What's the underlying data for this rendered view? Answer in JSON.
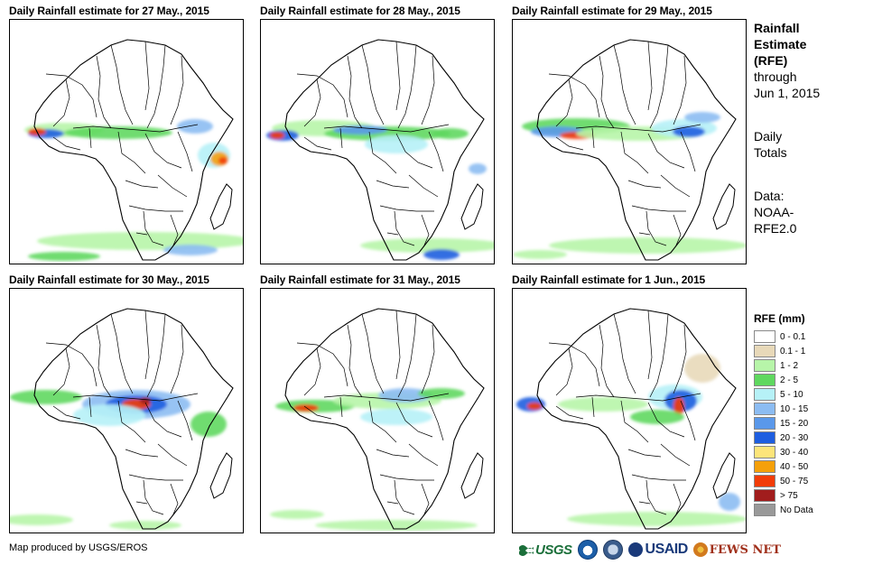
{
  "panels": [
    {
      "title": "Daily Rainfall estimate for 27 May., 2015"
    },
    {
      "title": "Daily Rainfall estimate for 28 May., 2015"
    },
    {
      "title": "Daily Rainfall estimate for 29 May., 2015"
    },
    {
      "title": "Daily Rainfall estimate for 30 May., 2015"
    },
    {
      "title": "Daily Rainfall estimate for 31 May., 2015"
    },
    {
      "title": "Daily Rainfall estimate for 1 Jun., 2015"
    }
  ],
  "side": {
    "title_lines": [
      "Rainfall",
      "Estimate",
      "(RFE)"
    ],
    "through_lines": [
      "through",
      "Jun 1, 2015"
    ],
    "totals_lines": [
      "Daily",
      "Totals"
    ],
    "data_lines": [
      "Data:",
      "NOAA-",
      "RFE2.0"
    ]
  },
  "legend": {
    "title": "RFE (mm)",
    "items": [
      {
        "label": "0 - 0.1",
        "color": "#ffffff"
      },
      {
        "label": "0.1 - 1",
        "color": "#e8d9b9"
      },
      {
        "label": "1 - 2",
        "color": "#b7f5a9"
      },
      {
        "label": "2 - 5",
        "color": "#5fd85f"
      },
      {
        "label": "5 - 10",
        "color": "#b6f1f7"
      },
      {
        "label": "10 - 15",
        "color": "#8cbcf2"
      },
      {
        "label": "15 - 20",
        "color": "#5a98ea"
      },
      {
        "label": "20 - 30",
        "color": "#1e5ee0"
      },
      {
        "label": "30 - 40",
        "color": "#fde57a"
      },
      {
        "label": "40 - 50",
        "color": "#f5a00a"
      },
      {
        "label": "50 - 75",
        "color": "#f23c08"
      },
      {
        "label": "> 75",
        "color": "#a11d1d"
      },
      {
        "label": "No Data",
        "color": "#999999"
      }
    ]
  },
  "credit": "Map produced by USGS/EROS",
  "logos": {
    "usgs": "USGS",
    "usaid": "USAID",
    "fews": "FEWS NET"
  }
}
